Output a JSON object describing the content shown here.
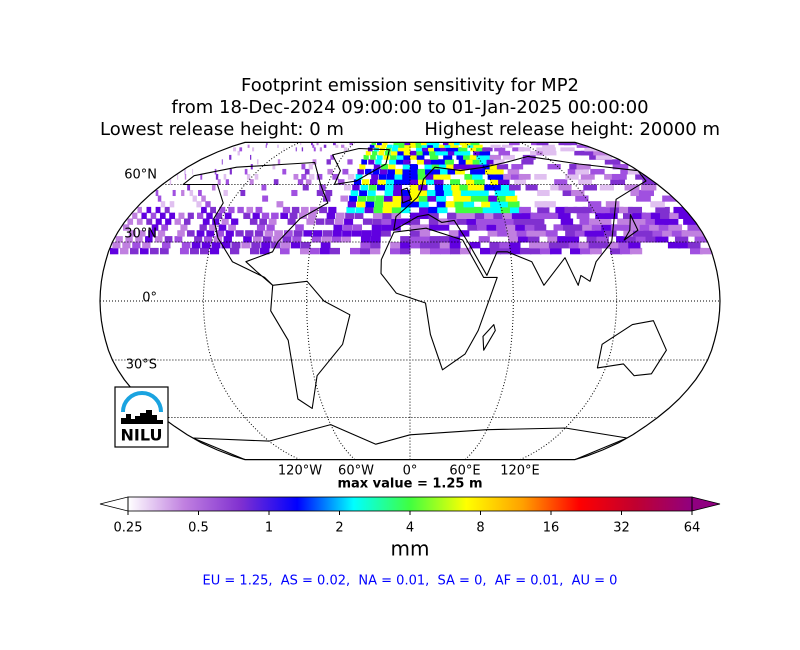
{
  "header": {
    "title": "Footprint emission sensitivity for MP2",
    "period": "from 18-Dec-2024 09:00:00 to 01-Jan-2025 00:00:00",
    "lowest": "Lowest release height: 0 m",
    "highest": "Highest release height: 20000 m"
  },
  "map": {
    "lat_labels": [
      "60°N",
      "30°N",
      "0°",
      "30°S"
    ],
    "lon_labels": [
      "120°W",
      "60°W",
      "0°",
      "60°E",
      "120°E"
    ],
    "max_value": "max value = 1.25 m",
    "logo": "NILU"
  },
  "colorbar": {
    "scale": "log",
    "ticks": [
      0.25,
      0.5,
      1,
      2,
      4,
      8,
      16,
      32,
      64
    ],
    "label": "mm",
    "colors": [
      "#ffffff",
      "#c080e0",
      "#8030d0",
      "#0000ff",
      "#00ffff",
      "#40ff40",
      "#ffff00",
      "#ffa000",
      "#ff0000",
      "#c00030",
      "#900080"
    ]
  },
  "footer": "EU = 1.25,  AS = 0.02,  NA = 0.01,  SA = 0,  AF = 0.01,  AU = 0"
}
